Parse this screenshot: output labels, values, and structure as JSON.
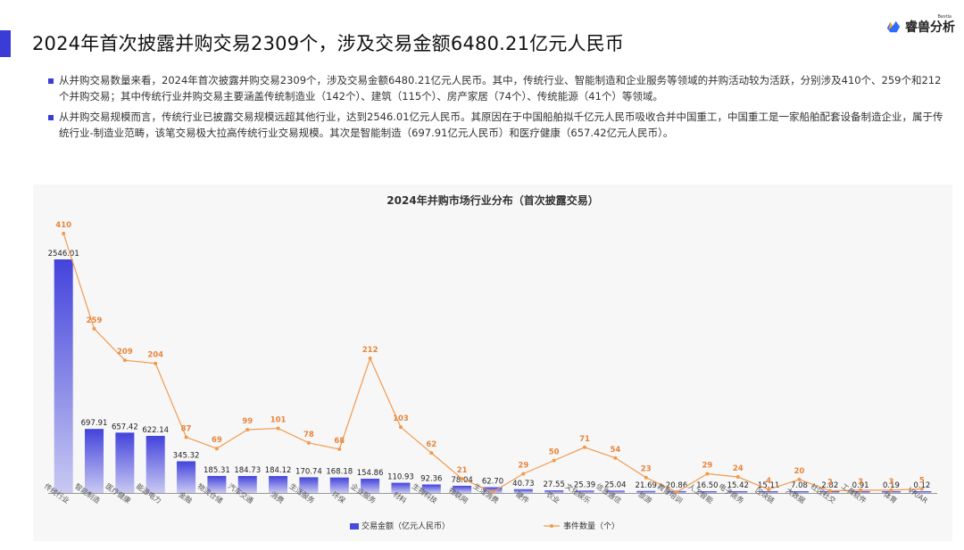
{
  "header": {
    "title": "2024年首次披露并购交易2309个，涉及交易金额6480.21亿元人民币",
    "brand_name": "睿兽分析",
    "brand_sub": "Bestla"
  },
  "bullets": [
    "从并购交易数量来看，2024年首次披露并购交易2309个，涉及交易金额6480.21亿元人民币。其中，传统行业、智能制造和企业服务等领域的并购活动较为活跃，分别涉及410个、259个和212个并购交易；其中传统行业并购交易主要涵盖传统制造业（142个）、建筑（115个）、房产家居（74个）、传统能源（41个）等领域。",
    "从并购交易规模而言，传统行业已披露交易规模远超其他行业，达到2546.01亿元人民币。其原因在于中国船舶拟千亿元人民币吸收合并中国重工，中国重工是一家船舶配套设备制造企业，属于传统行业-制造业范畴，该笔交易极大拉高传统行业交易规模。其次是智能制造（697.91亿元人民币）和医疗健康（657.42亿元人民币）。"
  ],
  "colors": {
    "accent": "#3b3bd6",
    "bar": "#4a4ae0",
    "line": "#f29a4c",
    "line_label": "#e8853a"
  },
  "chart_data": {
    "type": "bar",
    "title": "2024年并购市场行业分布（首次披露交易）",
    "categories": [
      "传统行业",
      "智能制造",
      "医疗健康",
      "能源电力",
      "金融",
      "物流仓储",
      "汽车交通",
      "消费",
      "生活服务",
      "环保",
      "企业服务",
      "材料",
      "生物科技",
      "物联网",
      "生活消费",
      "硬件",
      "农业",
      "文化娱乐",
      "信息通信",
      "旅游",
      "教育培训",
      "人工智能",
      "电子商务",
      "区块链",
      "大数据",
      "社区社交",
      "工具软件",
      "体育",
      "VR/AR"
    ],
    "series": [
      {
        "name": "交易金额（亿元人民币）",
        "type": "bar",
        "axis": "left",
        "values": [
          2546.01,
          697.91,
          657.42,
          622.14,
          345.32,
          185.31,
          184.73,
          184.12,
          170.74,
          168.18,
          154.86,
          110.93,
          92.36,
          78.04,
          62.7,
          40.73,
          27.55,
          25.39,
          25.04,
          21.69,
          20.86,
          16.5,
          15.42,
          15.11,
          7.08,
          2.82,
          0.91,
          0.19,
          0.12
        ],
        "labels": [
          "2546.01",
          "697.91",
          "657.42",
          "622.14",
          "345.32",
          "185.31",
          "184.73",
          "184.12",
          "170.74",
          "168.18",
          "154.86",
          "110.93",
          "92.36",
          "78.04",
          "62.70",
          "40.73",
          "27.55",
          "25.39",
          "25.04",
          "21.69",
          "20.86",
          "16.50",
          "15.42",
          "15.11",
          "7.08",
          "2.82",
          "0.91",
          "0.19",
          "0.12"
        ]
      },
      {
        "name": "事件数量（个）",
        "type": "line",
        "axis": "right",
        "values": [
          410,
          259,
          209,
          204,
          87,
          69,
          99,
          101,
          78,
          68,
          212,
          103,
          62,
          21,
          0,
          29,
          50,
          71,
          54,
          23,
          0,
          29,
          24,
          4,
          20,
          2,
          3,
          3,
          5
        ],
        "labels": [
          "410",
          "259",
          "209",
          "204",
          "87",
          "69",
          "99",
          "101",
          "78",
          "68",
          "212",
          "103",
          "62",
          "21",
          "",
          "29",
          "50",
          "71",
          "54",
          "23",
          "",
          "29",
          "24",
          "4",
          "20",
          "2",
          "3",
          "3",
          "5"
        ]
      }
    ],
    "ylim_left": [
      0,
      2546.01
    ],
    "ylim_right": [
      0,
      410
    ],
    "legend_position": "bottom-center",
    "grid": false
  }
}
